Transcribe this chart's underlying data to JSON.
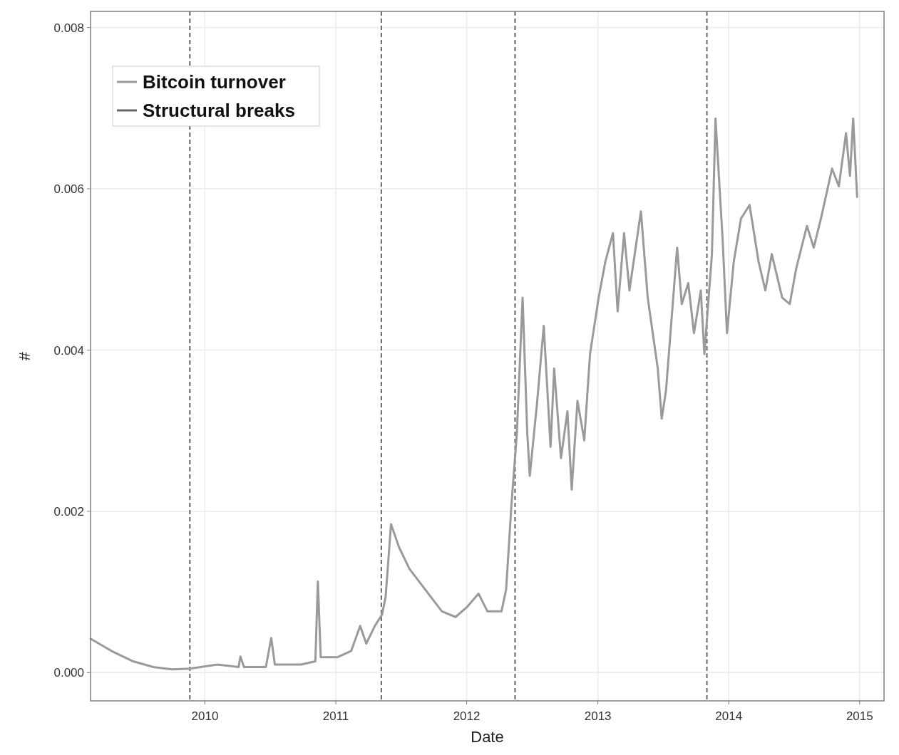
{
  "chart_data": {
    "type": "line",
    "xlabel": "Date",
    "ylabel": "#",
    "xlim": [
      "2009-02-16",
      "2015-03-10"
    ],
    "ylim": [
      -0.00035,
      0.0082
    ],
    "xticks": [
      {
        "value": "2010-01-01",
        "label": "2010"
      },
      {
        "value": "2011-01-01",
        "label": "2011"
      },
      {
        "value": "2012-01-01",
        "label": "2012"
      },
      {
        "value": "2013-01-01",
        "label": "2013"
      },
      {
        "value": "2014-01-01",
        "label": "2014"
      },
      {
        "value": "2015-01-01",
        "label": "2015"
      }
    ],
    "yticks": [
      {
        "value": 0,
        "label": "0.000"
      },
      {
        "value": 0.002,
        "label": "0.002"
      },
      {
        "value": 0.004,
        "label": "0.004"
      },
      {
        "value": 0.006,
        "label": "0.006"
      },
      {
        "value": 0.008,
        "label": "0.008"
      }
    ],
    "grid": true,
    "legend": "top left",
    "line_style": "solid",
    "marker": "none",
    "x": [
      "2009-02-16",
      "2009-04-15",
      "2009-06-15",
      "2009-08-10",
      "2009-10-01",
      "2009-11-20",
      "2010-02-05",
      "2010-04-05",
      "2010-04-10",
      "2010-04-20",
      "2010-06-20",
      "2010-07-05",
      "2010-07-15",
      "2010-09-26",
      "2010-11-05",
      "2010-11-12",
      "2010-11-20",
      "2011-01-05",
      "2011-02-13",
      "2011-03-10",
      "2011-03-27",
      "2011-04-20",
      "2011-05-10",
      "2011-05-20",
      "2011-06-04",
      "2011-06-26",
      "2011-07-25",
      "2011-09-16",
      "2011-10-24",
      "2011-12-01",
      "2012-01-01",
      "2012-02-03",
      "2012-02-28",
      "2012-04-07",
      "2012-04-20",
      "2012-05-05",
      "2012-05-20",
      "2012-06-05",
      "2012-06-18",
      "2012-06-25",
      "2012-07-15",
      "2012-08-03",
      "2012-08-22",
      "2012-09-01",
      "2012-09-20",
      "2012-10-08",
      "2012-10-20",
      "2012-11-05",
      "2012-11-24",
      "2012-12-10",
      "2013-01-03",
      "2013-01-22",
      "2013-02-12",
      "2013-02-25",
      "2013-03-15",
      "2013-03-30",
      "2013-05-01",
      "2013-05-20",
      "2013-06-17",
      "2013-06-28",
      "2013-07-10",
      "2013-08-10",
      "2013-08-23",
      "2013-09-10",
      "2013-09-26",
      "2013-10-15",
      "2013-10-25",
      "2013-11-15",
      "2013-11-25",
      "2013-12-15",
      "2013-12-27",
      "2014-01-15",
      "2014-02-04",
      "2014-02-28",
      "2014-03-25",
      "2014-04-13",
      "2014-05-01",
      "2014-05-30",
      "2014-06-20",
      "2014-07-08",
      "2014-08-07",
      "2014-08-26",
      "2014-09-15",
      "2014-10-16",
      "2014-11-04",
      "2014-11-24",
      "2014-12-05",
      "2014-12-14",
      "2014-12-25"
    ],
    "series": [
      {
        "name": "Bitcoin turnover",
        "color": "#9a9a9a",
        "values": [
          0.00042,
          0.00027,
          0.00014,
          7e-05,
          4e-05,
          5e-05,
          0.0001,
          7e-05,
          0.0002,
          7e-05,
          7e-05,
          0.00043,
          0.0001,
          0.0001,
          0.00014,
          0.00113,
          0.00019,
          0.00019,
          0.00027,
          0.00058,
          0.00036,
          0.00058,
          0.00072,
          0.00094,
          0.00184,
          0.00156,
          0.00129,
          0.00098,
          0.00076,
          0.00069,
          0.00081,
          0.00098,
          0.00076,
          0.00076,
          0.00103,
          0.00209,
          0.00297,
          0.00465,
          0.00297,
          0.00244,
          0.00333,
          0.0043,
          0.0028,
          0.00377,
          0.00266,
          0.00324,
          0.00227,
          0.00337,
          0.00288,
          0.00395,
          0.00465,
          0.0051,
          0.00545,
          0.00448,
          0.00545,
          0.00474,
          0.00572,
          0.00465,
          0.00377,
          0.00315,
          0.0035,
          0.00527,
          0.00457,
          0.00483,
          0.00421,
          0.00474,
          0.00395,
          0.00519,
          0.00687,
          0.00536,
          0.00421,
          0.0051,
          0.00563,
          0.0058,
          0.0051,
          0.00474,
          0.00519,
          0.00465,
          0.00457,
          0.00501,
          0.00554,
          0.00527,
          0.00563,
          0.00625,
          0.00603,
          0.00669,
          0.00616,
          0.00687,
          0.0059
        ]
      }
    ],
    "ref_lines": [
      {
        "axis": "x",
        "value": "2009-11-20",
        "label": "Structural breaks",
        "color": "#666666",
        "line_style": "dashed"
      },
      {
        "axis": "x",
        "value": "2011-05-08",
        "color": "#666666",
        "line_style": "dashed"
      },
      {
        "axis": "x",
        "value": "2012-05-15",
        "color": "#666666",
        "line_style": "dashed"
      },
      {
        "axis": "x",
        "value": "2013-11-01",
        "color": "#666666",
        "line_style": "dashed"
      }
    ]
  }
}
